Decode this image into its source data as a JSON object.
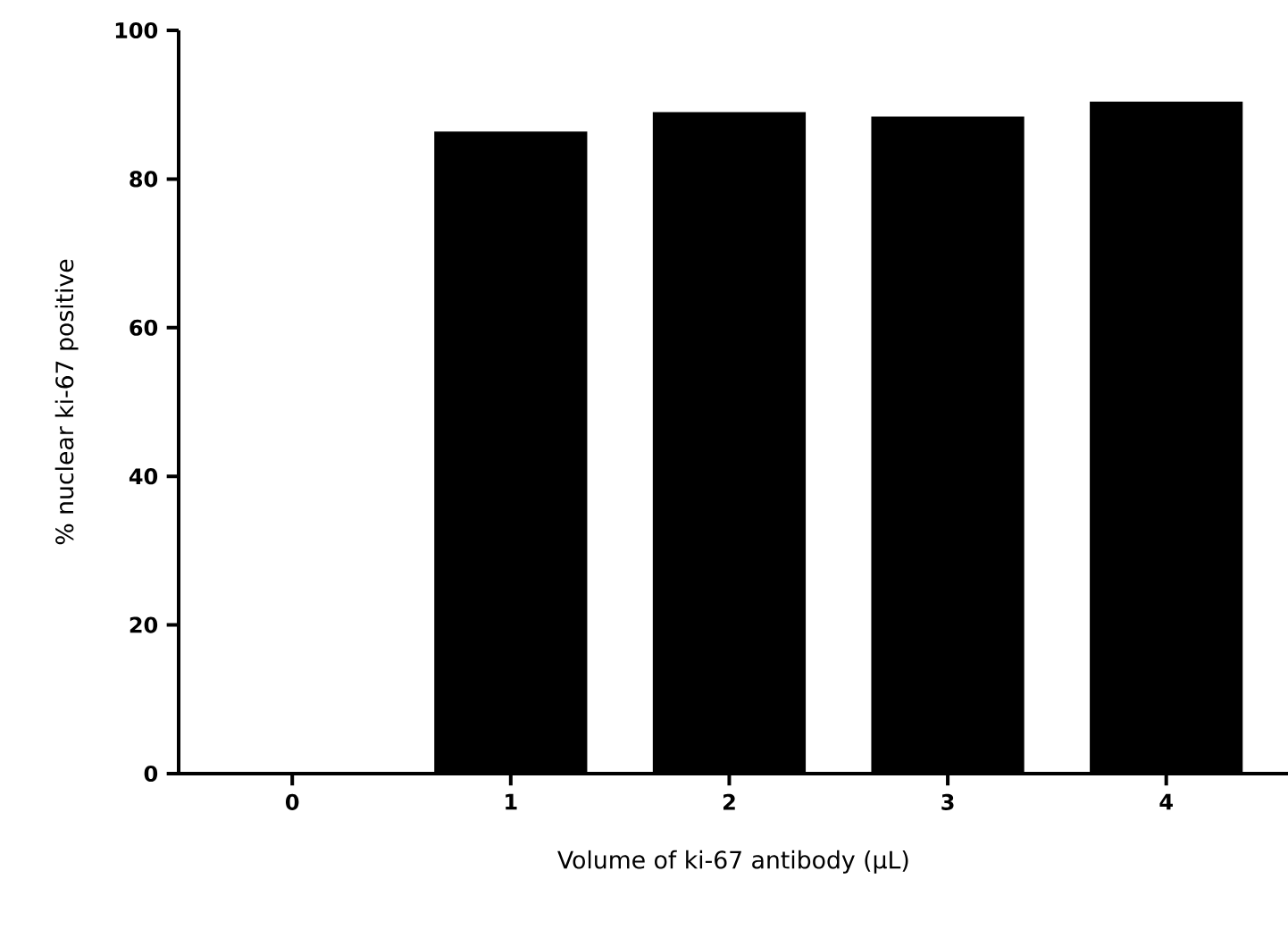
{
  "chart_data": {
    "type": "bar",
    "xlabel": "Volume of ki-67 antibody (µL)",
    "ylabel": "% nuclear ki-67 positive",
    "categories": [
      "0",
      "1",
      "2",
      "3",
      "4"
    ],
    "values": [
      0,
      86.4,
      89.0,
      88.4,
      90.4
    ],
    "color": "#000000",
    "ylim": [
      0,
      100
    ],
    "yticks": [
      0,
      20,
      40,
      60,
      80,
      100
    ]
  }
}
